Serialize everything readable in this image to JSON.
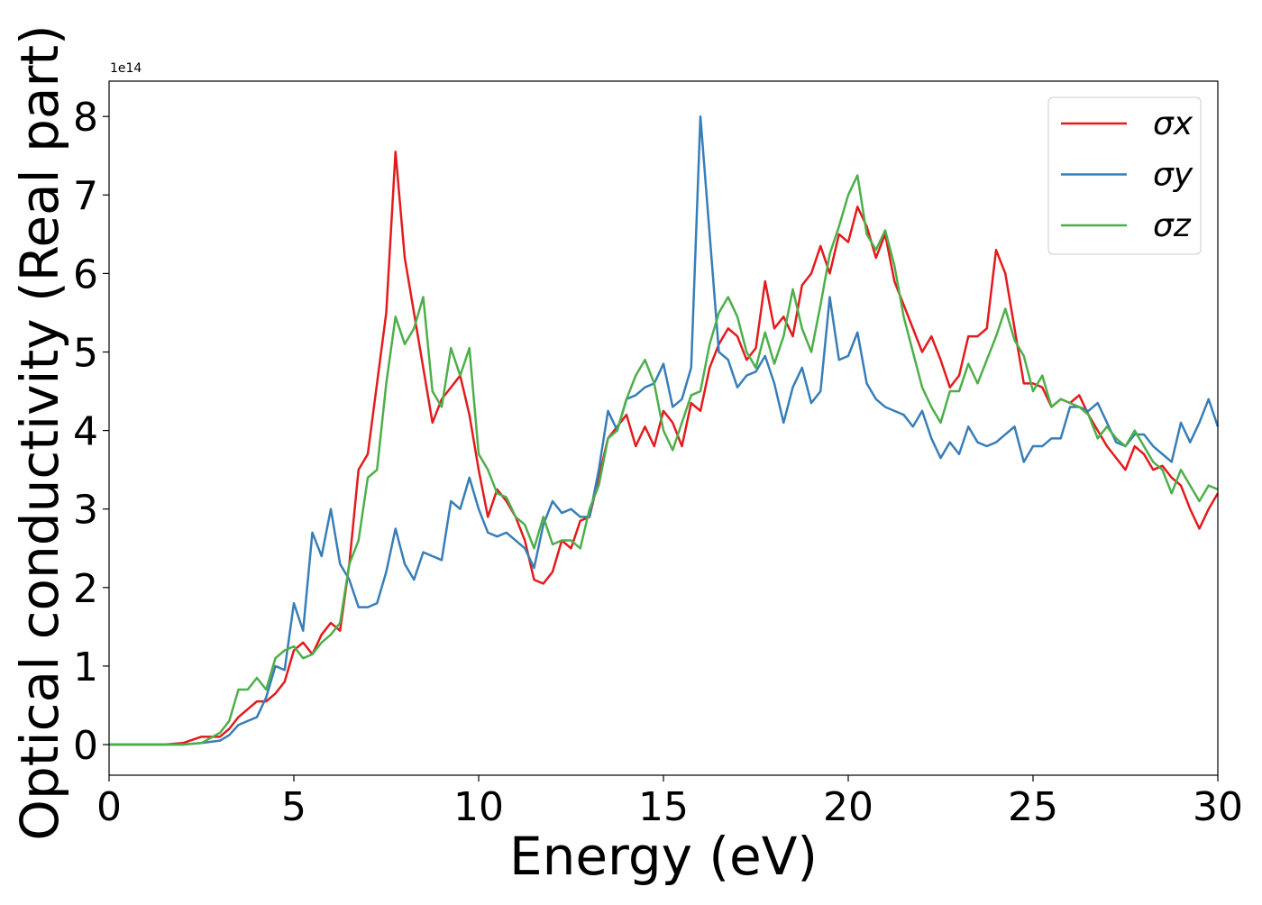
{
  "chart_data": {
    "type": "line",
    "x_label": "Energy (eV)",
    "y_label": "Optical conductivity (Real part)",
    "y_offset_label": "1e14",
    "x": [
      0,
      0.5,
      1,
      1.5,
      2,
      2.5,
      3,
      3.25,
      3.5,
      3.75,
      4,
      4.25,
      4.5,
      4.75,
      5,
      5.25,
      5.5,
      5.75,
      6,
      6.25,
      6.5,
      6.75,
      7,
      7.25,
      7.5,
      7.75,
      8,
      8.25,
      8.5,
      8.75,
      9,
      9.25,
      9.5,
      9.75,
      10,
      10.25,
      10.5,
      10.75,
      11,
      11.25,
      11.5,
      11.75,
      12,
      12.25,
      12.5,
      12.75,
      13,
      13.25,
      13.5,
      13.75,
      14,
      14.25,
      14.5,
      14.75,
      15,
      15.25,
      15.5,
      15.75,
      16,
      16.25,
      16.5,
      16.75,
      17,
      17.25,
      17.5,
      17.75,
      18,
      18.25,
      18.5,
      18.75,
      19,
      19.25,
      19.5,
      19.75,
      20,
      20.25,
      20.5,
      20.75,
      21,
      21.25,
      21.5,
      21.75,
      22,
      22.25,
      22.5,
      22.75,
      23,
      23.25,
      23.5,
      23.75,
      24,
      24.25,
      24.5,
      24.75,
      25,
      25.25,
      25.5,
      25.75,
      26,
      26.25,
      26.5,
      26.75,
      27,
      27.25,
      27.5,
      27.75,
      28,
      28.25,
      28.5,
      28.75,
      29,
      29.25,
      29.5,
      29.75,
      30
    ],
    "series": [
      {
        "name": "σx",
        "color": "#e41a1c",
        "values": [
          0,
          0,
          0,
          0,
          0.02,
          0.1,
          0.1,
          0.2,
          0.35,
          0.45,
          0.55,
          0.55,
          0.65,
          0.8,
          1.2,
          1.3,
          1.15,
          1.4,
          1.55,
          1.45,
          2.3,
          3.5,
          3.7,
          4.6,
          5.5,
          7.55,
          6.2,
          5.5,
          4.8,
          4.1,
          4.4,
          4.55,
          4.7,
          4.2,
          3.5,
          2.9,
          3.25,
          3.1,
          2.9,
          2.6,
          2.1,
          2.05,
          2.2,
          2.6,
          2.5,
          2.85,
          2.9,
          3.4,
          3.9,
          4.05,
          4.2,
          3.8,
          4.05,
          3.8,
          4.25,
          4.1,
          3.8,
          4.35,
          4.25,
          4.8,
          5.1,
          5.3,
          5.2,
          4.9,
          5.05,
          5.9,
          5.3,
          5.45,
          5.2,
          5.85,
          6.0,
          6.35,
          6.0,
          6.5,
          6.4,
          6.85,
          6.6,
          6.2,
          6.5,
          5.9,
          5.6,
          5.3,
          5.0,
          5.2,
          4.9,
          4.55,
          4.7,
          5.2,
          5.2,
          5.3,
          6.3,
          6.0,
          5.3,
          4.6,
          4.6,
          4.55,
          4.3,
          4.4,
          4.35,
          4.45,
          4.2,
          4.0,
          3.8,
          3.65,
          3.5,
          3.8,
          3.7,
          3.5,
          3.55,
          3.4,
          3.3,
          3.0,
          2.75,
          3.0,
          3.2
        ]
      },
      {
        "name": "σy",
        "color": "#377eb8",
        "values": [
          0,
          0,
          0,
          0,
          0,
          0.02,
          0.05,
          0.12,
          0.25,
          0.3,
          0.35,
          0.6,
          1.0,
          0.95,
          1.8,
          1.45,
          2.7,
          2.4,
          3.0,
          2.3,
          2.1,
          1.75,
          1.75,
          1.8,
          2.2,
          2.75,
          2.3,
          2.1,
          2.45,
          2.4,
          2.35,
          3.1,
          3.0,
          3.4,
          3.0,
          2.7,
          2.65,
          2.7,
          2.6,
          2.5,
          2.25,
          2.8,
          3.1,
          2.95,
          3.0,
          2.9,
          2.9,
          3.5,
          4.25,
          4.0,
          4.4,
          4.45,
          4.55,
          4.6,
          4.85,
          4.3,
          4.4,
          4.8,
          8.0,
          6.5,
          5.0,
          4.9,
          4.55,
          4.7,
          4.75,
          4.95,
          4.6,
          4.1,
          4.55,
          4.8,
          4.35,
          4.5,
          5.7,
          4.9,
          4.95,
          5.25,
          4.6,
          4.4,
          4.3,
          4.25,
          4.2,
          4.05,
          4.25,
          3.9,
          3.65,
          3.85,
          3.7,
          4.05,
          3.85,
          3.8,
          3.85,
          3.95,
          4.05,
          3.6,
          3.8,
          3.8,
          3.9,
          3.9,
          4.3,
          4.3,
          4.25,
          4.35,
          4.1,
          3.85,
          3.8,
          3.95,
          3.95,
          3.8,
          3.7,
          3.6,
          4.1,
          3.85,
          4.1,
          4.4,
          4.05
        ]
      },
      {
        "name": "σz",
        "color": "#4daf4a",
        "values": [
          0,
          0,
          0,
          0,
          0,
          0.02,
          0.15,
          0.3,
          0.7,
          0.7,
          0.85,
          0.7,
          1.1,
          1.2,
          1.25,
          1.1,
          1.15,
          1.3,
          1.4,
          1.55,
          2.3,
          2.6,
          3.4,
          3.5,
          4.6,
          5.45,
          5.1,
          5.3,
          5.7,
          4.5,
          4.3,
          5.05,
          4.7,
          5.05,
          3.7,
          3.5,
          3.2,
          3.15,
          2.9,
          2.8,
          2.5,
          2.9,
          2.55,
          2.6,
          2.6,
          2.5,
          3.0,
          3.3,
          3.9,
          4.0,
          4.4,
          4.7,
          4.9,
          4.6,
          4.0,
          3.75,
          4.1,
          4.45,
          4.5,
          5.1,
          5.5,
          5.7,
          5.45,
          5.0,
          4.8,
          5.25,
          4.85,
          5.2,
          5.8,
          5.3,
          5.0,
          5.6,
          6.25,
          6.6,
          7.0,
          7.25,
          6.5,
          6.3,
          6.55,
          6.1,
          5.45,
          5.0,
          4.55,
          4.3,
          4.1,
          4.5,
          4.5,
          4.85,
          4.6,
          4.9,
          5.2,
          5.55,
          5.15,
          4.95,
          4.5,
          4.7,
          4.3,
          4.4,
          4.35,
          4.3,
          4.2,
          3.9,
          4.05,
          3.9,
          3.8,
          4.0,
          3.8,
          3.6,
          3.5,
          3.2,
          3.5,
          3.3,
          3.1,
          3.3,
          3.25
        ]
      }
    ],
    "xlim": [
      0,
      30
    ],
    "xticks": [
      0,
      5,
      10,
      15,
      20,
      25,
      30
    ],
    "ylim": [
      -0.39,
      8.45
    ],
    "yticks": [
      0,
      1,
      2,
      3,
      4,
      5,
      6,
      7,
      8
    ],
    "grid": false,
    "legend": "upper right"
  }
}
